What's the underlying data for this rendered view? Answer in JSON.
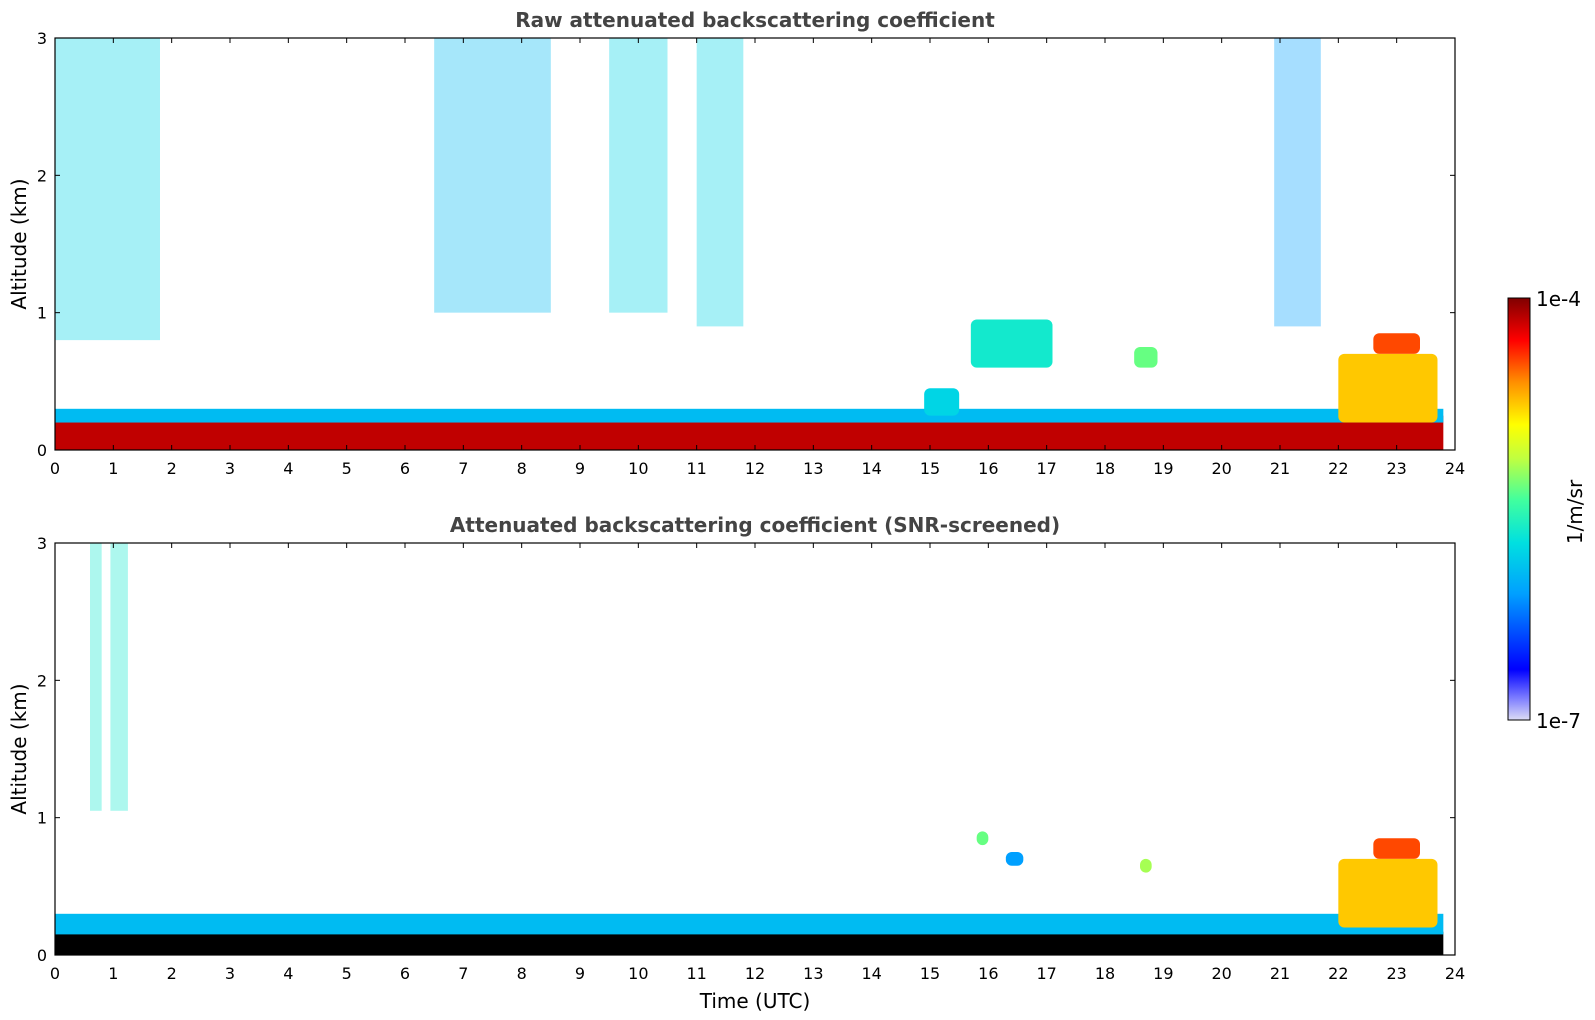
{
  "chart_data": [
    {
      "type": "heatmap",
      "title": "Raw attenuated backscattering coefficient",
      "xlabel": "",
      "ylabel": "Altitude (km)",
      "xlim": [
        0,
        24
      ],
      "ylim": [
        0,
        3
      ],
      "x_ticks": [
        "0",
        "1",
        "2",
        "3",
        "4",
        "5",
        "6",
        "7",
        "8",
        "9",
        "10",
        "11",
        "12",
        "13",
        "14",
        "15",
        "16",
        "17",
        "18",
        "19",
        "20",
        "21",
        "22",
        "23",
        "24"
      ],
      "y_ticks": [
        "0",
        "1",
        "2",
        "3"
      ],
      "color_scale": "log",
      "features": [
        {
          "name": "boundary-layer",
          "x": [
            0,
            23.8
          ],
          "y": [
            0,
            0.25
          ],
          "level": 0.95
        },
        {
          "name": "aerosol-top",
          "x": [
            0,
            23.8
          ],
          "y": [
            0.2,
            0.3
          ],
          "level": 0.35
        },
        {
          "name": "noise-plume",
          "x": [
            0,
            1.8
          ],
          "y": [
            0.8,
            3
          ],
          "level": 0.4
        },
        {
          "name": "noise-plume",
          "x": [
            6.5,
            8.5
          ],
          "y": [
            1,
            3
          ],
          "level": 0.35
        },
        {
          "name": "noise-plume",
          "x": [
            9.5,
            10.5
          ],
          "y": [
            1,
            3
          ],
          "level": 0.4
        },
        {
          "name": "noise-plume",
          "x": [
            11,
            11.8
          ],
          "y": [
            0.9,
            3
          ],
          "level": 0.4
        },
        {
          "name": "noise-plume",
          "x": [
            20.9,
            21.7
          ],
          "y": [
            0.9,
            3
          ],
          "level": 0.3
        },
        {
          "name": "cloud",
          "x": [
            15.7,
            17.1
          ],
          "y": [
            0.6,
            0.95
          ],
          "level": 0.45
        },
        {
          "name": "cloud",
          "x": [
            18.5,
            18.9
          ],
          "y": [
            0.6,
            0.75
          ],
          "level": 0.55
        },
        {
          "name": "cloud",
          "x": [
            22.6,
            23.4
          ],
          "y": [
            0.7,
            0.85
          ],
          "level": 0.85
        },
        {
          "name": "cloud",
          "x": [
            22,
            23.7
          ],
          "y": [
            0.2,
            0.7
          ],
          "level": 0.75
        },
        {
          "name": "aerosol-bump",
          "x": [
            14.9,
            15.5
          ],
          "y": [
            0.25,
            0.45
          ],
          "level": 0.4
        }
      ]
    },
    {
      "type": "heatmap",
      "title": "Attenuated backscattering coefficient (SNR-screened)",
      "xlabel": "Time (UTC)",
      "ylabel": "Altitude (km)",
      "xlim": [
        0,
        24
      ],
      "ylim": [
        0,
        3
      ],
      "x_ticks": [
        "0",
        "1",
        "2",
        "3",
        "4",
        "5",
        "6",
        "7",
        "8",
        "9",
        "10",
        "11",
        "12",
        "13",
        "14",
        "15",
        "16",
        "17",
        "18",
        "19",
        "20",
        "21",
        "22",
        "23",
        "24"
      ],
      "y_ticks": [
        "0",
        "1",
        "2",
        "3"
      ],
      "color_scale": "log",
      "features": [
        {
          "name": "saturated-layer",
          "x": [
            0,
            23.8
          ],
          "y": [
            0,
            0.17
          ],
          "level": 1.0
        },
        {
          "name": "aerosol-top",
          "x": [
            0,
            23.8
          ],
          "y": [
            0.15,
            0.3
          ],
          "level": 0.35
        },
        {
          "name": "screened-plume",
          "x": [
            0.6,
            0.8
          ],
          "y": [
            1.05,
            3
          ],
          "level": 0.45
        },
        {
          "name": "screened-plume",
          "x": [
            0.95,
            1.25
          ],
          "y": [
            1.05,
            3
          ],
          "level": 0.45
        },
        {
          "name": "cloud",
          "x": [
            15.8,
            16.0
          ],
          "y": [
            0.8,
            0.9
          ],
          "level": 0.55
        },
        {
          "name": "cloud",
          "x": [
            16.3,
            16.6
          ],
          "y": [
            0.65,
            0.75
          ],
          "level": 0.3
        },
        {
          "name": "cloud",
          "x": [
            18.6,
            18.8
          ],
          "y": [
            0.6,
            0.7
          ],
          "level": 0.6
        },
        {
          "name": "cloud",
          "x": [
            22.6,
            23.4
          ],
          "y": [
            0.7,
            0.85
          ],
          "level": 0.85
        },
        {
          "name": "cloud",
          "x": [
            22,
            23.7
          ],
          "y": [
            0.2,
            0.7
          ],
          "level": 0.75
        }
      ]
    }
  ],
  "colorbar": {
    "label": "1/m/sr",
    "max_label": "1e-4",
    "min_label": "1e-7",
    "stops": [
      "#dcdcf5",
      "#0000ff",
      "#00b0ff",
      "#40ffbf",
      "#ffff00",
      "#ff8000",
      "#ff0000",
      "#800000"
    ]
  }
}
